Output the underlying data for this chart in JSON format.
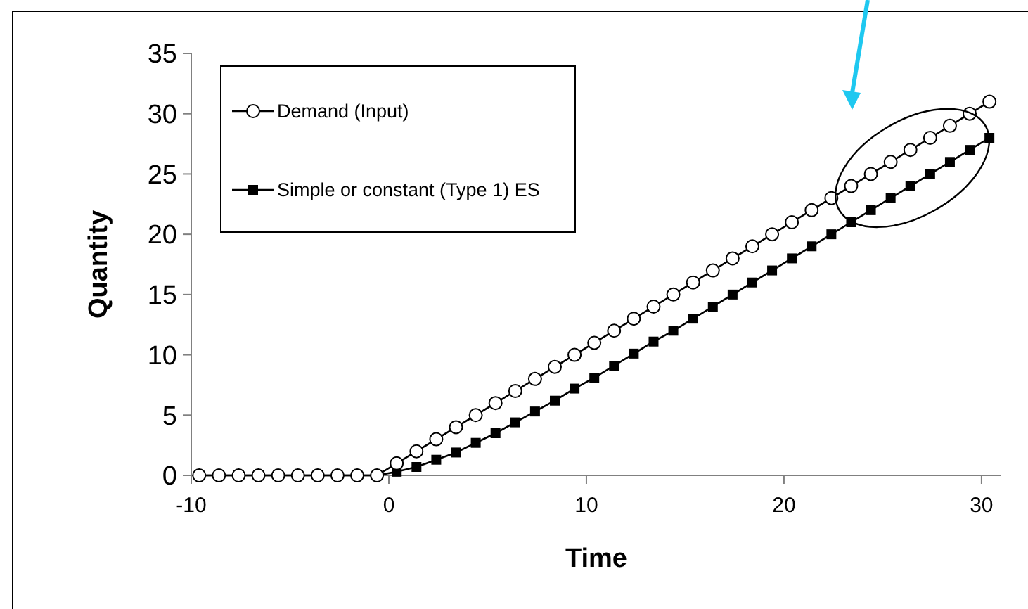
{
  "chart_data": {
    "type": "line",
    "xlabel": "Time",
    "ylabel": "Quantity",
    "x": [
      -9.6,
      -8.6,
      -7.6,
      -6.6,
      -5.6,
      -4.6,
      -3.6,
      -2.6,
      -1.6,
      -0.6,
      0.4,
      1.4,
      2.4,
      3.4,
      4.4,
      5.4,
      6.4,
      7.4,
      8.4,
      9.4,
      10.4,
      11.4,
      12.4,
      13.4,
      14.4,
      15.4,
      16.4,
      17.4,
      18.4,
      19.4,
      20.4,
      21.4,
      22.4,
      23.4,
      24.4,
      25.4,
      26.4,
      27.4,
      28.4,
      29.4,
      30.4
    ],
    "series": [
      {
        "name": "Simple or constant (Type 1) ES",
        "color": "#000000",
        "marker": "square",
        "values": [
          0,
          0,
          0,
          0,
          0,
          0,
          0,
          0,
          0,
          0,
          0.3,
          0.7,
          1.3,
          1.9,
          2.7,
          3.5,
          4.4,
          5.3,
          6.2,
          7.2,
          8.1,
          9.1,
          10.1,
          11.1,
          12,
          13,
          14,
          15,
          16,
          17,
          18,
          19,
          20,
          21,
          22,
          23,
          24,
          25,
          26,
          27,
          28
        ]
      },
      {
        "name": "Demand (Input)",
        "color": "#000000",
        "marker": "circle",
        "values": [
          0,
          0,
          0,
          0,
          0,
          0,
          0,
          0,
          0,
          0,
          1,
          2,
          3,
          4,
          5,
          6,
          7,
          8,
          9,
          10,
          11,
          12,
          13,
          14,
          15,
          16,
          17,
          18,
          19,
          20,
          21,
          22,
          23,
          24,
          25,
          26,
          27,
          28,
          29,
          30,
          31
        ]
      }
    ],
    "xlim": [
      -10,
      31
    ],
    "xticks": [
      -10,
      0,
      10,
      20,
      30
    ],
    "ylim": [
      0,
      35
    ],
    "yticks": [
      0,
      5,
      10,
      15,
      20,
      25,
      30,
      35
    ],
    "grid": false,
    "legend": "top left",
    "line_style": "solid"
  }
}
